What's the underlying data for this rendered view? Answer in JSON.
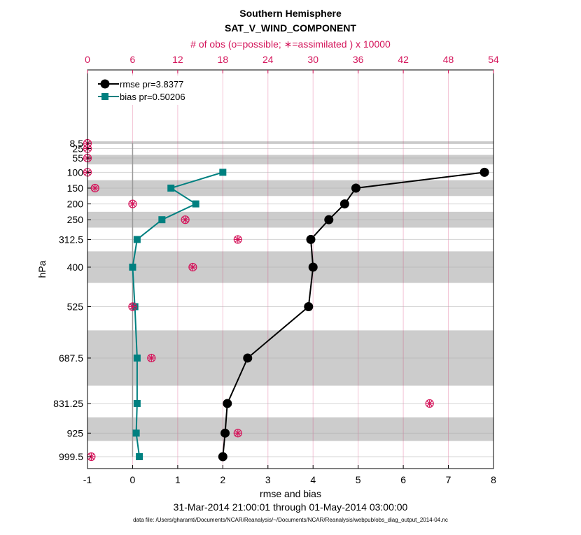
{
  "chart_data": {
    "type": "line",
    "title": "Southern Hemisphere",
    "subtitle": "SAT_V_WIND_COMPONENT",
    "xlabel": "rmse and bias",
    "xlim": [
      -1,
      8
    ],
    "x_ticks": [
      -1,
      0,
      1,
      2,
      3,
      4,
      5,
      6,
      7,
      8
    ],
    "ylabel": "hPa",
    "y_levels": [
      8.5,
      25,
      55,
      100,
      150,
      200,
      250,
      312.5,
      400,
      525,
      687.5,
      831.25,
      925,
      999.5
    ],
    "y_tick_labels": [
      "8.5",
      "25",
      "55",
      "100",
      "150",
      "200",
      "250",
      "312.5",
      "400",
      "525",
      "687.5",
      "831.25",
      "925",
      "999.5"
    ],
    "top_axis": {
      "label": "# of obs (o=possible; ∗=assimilated ) x 10000",
      "ticks": [
        0,
        6,
        12,
        18,
        24,
        30,
        36,
        42,
        48,
        54
      ],
      "range": [
        0,
        54
      ]
    },
    "date_range": "31-Mar-2014 21:00:01 through 01-May-2014 03:00:00",
    "data_file": "data file: /Users/gharamti/Documents/NCAR/Reanalysis/~/Documents/NCAR/Reanalysis/webpub/obs_diag_output_2014-04.nc",
    "grey_bands": [
      {
        "from": 2,
        "to": 10
      },
      {
        "from": 45,
        "to": 75
      },
      {
        "from": 125,
        "to": 175
      },
      {
        "from": 225,
        "to": 275
      },
      {
        "from": 350,
        "to": 450
      },
      {
        "from": 600,
        "to": 775
      },
      {
        "from": 875,
        "to": 950
      }
    ],
    "series": [
      {
        "name": "rmse",
        "legend": "rmse pr=3.8377",
        "color": "#000000",
        "marker": "circle",
        "points": [
          {
            "level": 100,
            "value": 7.8
          },
          {
            "level": 150,
            "value": 4.95
          },
          {
            "level": 200,
            "value": 4.7
          },
          {
            "level": 250,
            "value": 4.35
          },
          {
            "level": 312.5,
            "value": 3.95
          },
          {
            "level": 400,
            "value": 4.0
          },
          {
            "level": 525,
            "value": 3.9
          },
          {
            "level": 687.5,
            "value": 2.55
          },
          {
            "level": 831.25,
            "value": 2.1
          },
          {
            "level": 925,
            "value": 2.05
          },
          {
            "level": 999.5,
            "value": 2.0
          }
        ]
      },
      {
        "name": "bias",
        "legend": "bias pr=0.50206",
        "color": "#008080",
        "marker": "square",
        "points": [
          {
            "level": 100,
            "value": 2.0
          },
          {
            "level": 150,
            "value": 0.85
          },
          {
            "level": 200,
            "value": 1.4
          },
          {
            "level": 250,
            "value": 0.65
          },
          {
            "level": 312.5,
            "value": 0.1
          },
          {
            "level": 400,
            "value": 0.0
          },
          {
            "level": 525,
            "value": 0.05
          },
          {
            "level": 687.5,
            "value": 0.1
          },
          {
            "level": 831.25,
            "value": 0.1
          },
          {
            "level": 925,
            "value": 0.08
          },
          {
            "level": 999.5,
            "value": 0.15
          }
        ]
      }
    ],
    "obs_counts": {
      "legend": "o=possible; ∗=assimilated",
      "color": "#d4145a",
      "points": [
        {
          "level": 8.5,
          "count": 0
        },
        {
          "level": 25,
          "count": 0
        },
        {
          "level": 55,
          "count": 0
        },
        {
          "level": 100,
          "count": 0
        },
        {
          "level": 150,
          "count": 1
        },
        {
          "level": 200,
          "count": 6
        },
        {
          "level": 250,
          "count": 13
        },
        {
          "level": 312.5,
          "count": 20
        },
        {
          "level": 400,
          "count": 14
        },
        {
          "level": 525,
          "count": 6
        },
        {
          "level": 687.5,
          "count": 8.5
        },
        {
          "level": 831.25,
          "count": 45.5
        },
        {
          "level": 925,
          "count": 20
        },
        {
          "level": 999.5,
          "count": 0.5
        }
      ]
    }
  }
}
